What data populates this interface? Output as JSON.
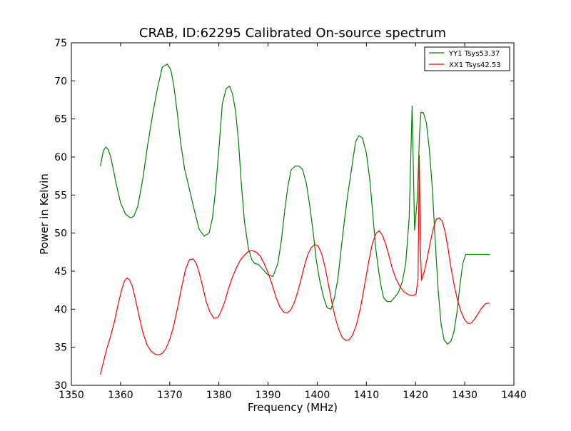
{
  "chart_data": {
    "type": "line",
    "title": "CRAB, ID:62295 Calibrated On-source spectrum",
    "xlabel": "Frequency (MHz)",
    "ylabel": "Power in Kelvin",
    "xlim": [
      1350,
      1440
    ],
    "ylim": [
      30,
      75
    ],
    "x_ticks": [
      1350,
      1360,
      1370,
      1380,
      1390,
      1400,
      1410,
      1420,
      1430,
      1440
    ],
    "y_ticks": [
      30,
      35,
      40,
      45,
      50,
      55,
      60,
      65,
      70,
      75
    ],
    "grid": false,
    "legend_position": "top-right",
    "series": [
      {
        "name": "YY1 Tsys53.37",
        "color": "#008000",
        "x": [
          1355.9,
          1356.5,
          1357.0,
          1357.5,
          1358.0,
          1358.5,
          1359.0,
          1360.0,
          1361.0,
          1362.0,
          1362.7,
          1363.5,
          1364.5,
          1365.5,
          1366.5,
          1367.5,
          1368.5,
          1369.5,
          1370.2,
          1370.8,
          1371.5,
          1372.2,
          1373.0,
          1374.0,
          1375.0,
          1376.0,
          1377.0,
          1378.0,
          1378.7,
          1379.3,
          1380.0,
          1380.7,
          1381.5,
          1382.2,
          1382.8,
          1383.4,
          1384.0,
          1384.5,
          1385.2,
          1386.0,
          1386.7,
          1387.3,
          1388.0,
          1389.0,
          1390.0,
          1391.0,
          1392.0,
          1392.7,
          1393.4,
          1394.0,
          1394.7,
          1395.5,
          1396.3,
          1397.0,
          1397.8,
          1398.5,
          1399.2,
          1399.8,
          1400.5,
          1401.2,
          1402.0,
          1402.8,
          1403.5,
          1404.2,
          1404.8,
          1405.5,
          1406.2,
          1407.0,
          1407.8,
          1408.5,
          1409.2,
          1410.0,
          1410.7,
          1411.3,
          1411.9,
          1412.5,
          1413.0,
          1413.5,
          1414.2,
          1415.0,
          1415.8,
          1416.5,
          1417.3,
          1418.0,
          1418.7,
          1419.3,
          1419.8,
          1420.3,
          1420.6,
          1420.8,
          1421.1,
          1421.6,
          1422.2,
          1422.8,
          1423.4,
          1424.0,
          1424.6,
          1425.2,
          1425.8,
          1426.5,
          1427.2,
          1427.8,
          1428.4,
          1429.0,
          1429.6,
          1430.2,
          1430.8,
          1431.5,
          1432.2,
          1433.0,
          1433.8,
          1434.5,
          1435.1
        ],
        "y": [
          58.8,
          60.8,
          61.3,
          61.0,
          60.0,
          58.5,
          56.8,
          54.0,
          52.5,
          52.0,
          52.2,
          53.5,
          57.0,
          61.5,
          65.5,
          69.0,
          71.8,
          72.2,
          71.5,
          69.5,
          66.0,
          62.0,
          58.5,
          55.8,
          53.0,
          50.5,
          49.6,
          50.0,
          52.0,
          55.5,
          61.0,
          67.0,
          69.0,
          69.3,
          68.2,
          66.0,
          62.0,
          57.0,
          51.5,
          48.0,
          46.5,
          46.0,
          45.9,
          45.2,
          44.5,
          44.3,
          46.0,
          49.0,
          53.0,
          56.0,
          58.3,
          58.8,
          58.8,
          58.4,
          56.5,
          53.5,
          50.0,
          46.5,
          43.8,
          41.8,
          40.2,
          40.0,
          41.5,
          44.0,
          47.5,
          51.5,
          55.0,
          58.5,
          62.0,
          62.8,
          62.5,
          60.5,
          57.0,
          52.5,
          48.0,
          45.0,
          43.0,
          41.5,
          41.0,
          41.0,
          41.6,
          42.2,
          43.6,
          46.0,
          52.0,
          66.7,
          50.4,
          54.0,
          59.0,
          63.0,
          65.9,
          65.8,
          64.5,
          61.0,
          56.0,
          49.0,
          42.5,
          38.0,
          36.0,
          35.4,
          35.8,
          37.0,
          39.5,
          43.0,
          46.0,
          47.2,
          47.2,
          47.2,
          47.2,
          47.2,
          47.2,
          47.2,
          47.2
        ]
      },
      {
        "name": "XX1 Tsys42.53",
        "color": "#ff0000",
        "x": [
          1355.9,
          1356.5,
          1357.2,
          1358.0,
          1358.8,
          1359.5,
          1360.2,
          1360.8,
          1361.3,
          1361.8,
          1362.4,
          1363.0,
          1363.8,
          1364.6,
          1365.4,
          1366.2,
          1367.0,
          1367.8,
          1368.5,
          1369.2,
          1370.0,
          1370.8,
          1371.6,
          1372.4,
          1373.2,
          1374.0,
          1374.8,
          1375.4,
          1376.0,
          1376.7,
          1377.4,
          1378.2,
          1379.0,
          1379.8,
          1380.5,
          1381.2,
          1382.0,
          1382.8,
          1383.6,
          1384.4,
          1385.2,
          1386.0,
          1386.8,
          1387.6,
          1388.4,
          1389.2,
          1390.0,
          1390.8,
          1391.6,
          1392.4,
          1393.2,
          1393.9,
          1394.6,
          1395.3,
          1396.0,
          1396.7,
          1397.4,
          1398.1,
          1398.8,
          1399.5,
          1400.2,
          1400.9,
          1401.6,
          1402.3,
          1403.0,
          1403.7,
          1404.4,
          1405.1,
          1405.8,
          1406.5,
          1407.2,
          1408.0,
          1408.8,
          1409.6,
          1410.4,
          1411.2,
          1412.0,
          1412.6,
          1413.2,
          1413.9,
          1414.6,
          1415.3,
          1416.0,
          1416.8,
          1417.6,
          1418.3,
          1419.0,
          1419.6,
          1420.1,
          1420.5,
          1420.75,
          1420.95,
          1421.2,
          1421.8,
          1422.4,
          1423.0,
          1423.6,
          1424.2,
          1424.8,
          1425.4,
          1426.0,
          1426.6,
          1427.2,
          1427.9,
          1428.6,
          1429.3,
          1430.0,
          1430.7,
          1431.4,
          1432.1,
          1432.8,
          1433.5,
          1434.2,
          1434.8,
          1435.1
        ],
        "y": [
          31.4,
          33.0,
          34.8,
          36.5,
          38.5,
          40.6,
          42.5,
          43.7,
          44.1,
          43.9,
          43.0,
          41.4,
          39.0,
          36.8,
          35.3,
          34.5,
          34.1,
          34.0,
          34.2,
          34.8,
          36.0,
          37.8,
          40.2,
          42.8,
          45.2,
          46.5,
          46.6,
          46.0,
          44.8,
          43.0,
          41.0,
          39.6,
          38.8,
          38.9,
          39.8,
          41.0,
          42.8,
          44.3,
          45.5,
          46.5,
          47.1,
          47.6,
          47.7,
          47.5,
          47.0,
          46.0,
          44.8,
          43.3,
          41.6,
          40.3,
          39.6,
          39.5,
          39.9,
          40.8,
          42.2,
          43.9,
          45.7,
          47.2,
          48.1,
          48.5,
          48.3,
          47.3,
          45.5,
          43.2,
          40.8,
          38.8,
          37.3,
          36.3,
          35.9,
          36.0,
          36.6,
          38.0,
          40.2,
          43.0,
          46.0,
          48.6,
          50.0,
          50.3,
          49.8,
          48.6,
          47.0,
          45.3,
          44.0,
          43.0,
          42.3,
          42.0,
          41.8,
          41.8,
          42.0,
          44.0,
          60.2,
          49.0,
          43.8,
          45.0,
          46.8,
          48.8,
          50.6,
          51.8,
          52.0,
          51.6,
          50.2,
          48.0,
          45.5,
          43.0,
          41.0,
          39.6,
          38.6,
          38.1,
          38.2,
          38.8,
          39.5,
          40.2,
          40.7,
          40.8,
          40.8
        ]
      }
    ]
  }
}
